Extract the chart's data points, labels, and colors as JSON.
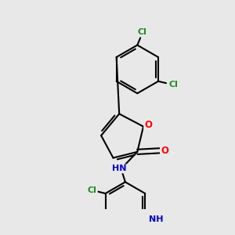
{
  "background_color": "#e8e8e8",
  "bond_color": "#000000",
  "bond_width": 1.5,
  "atom_colors": {
    "N": "#0000cd",
    "O": "#ff0000",
    "Cl": "#228b22"
  },
  "font_size_main": 8.5,
  "font_size_cl": 8.0,
  "font_size_nh": 8.0
}
